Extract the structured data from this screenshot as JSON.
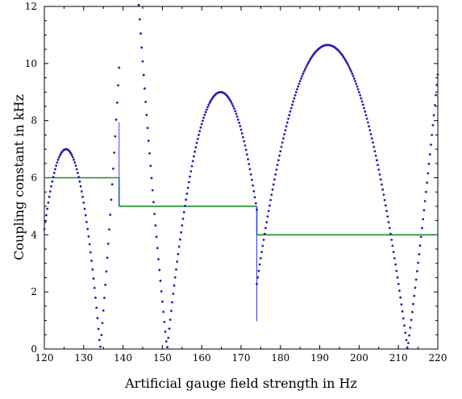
{
  "chart_data": {
    "type": "scatter",
    "title": "",
    "xlabel": "Artificial gauge field strength in Hz",
    "ylabel": "Coupling constant  in  kHz",
    "xlim": [
      120,
      220
    ],
    "ylim": [
      0,
      12
    ],
    "x_ticks": [
      120,
      130,
      140,
      150,
      160,
      170,
      180,
      190,
      200,
      210,
      220
    ],
    "y_ticks": [
      0,
      2,
      4,
      6,
      8,
      10,
      12
    ],
    "x_tick_labels": [
      "120",
      "130",
      "140",
      "150",
      "160",
      "170",
      "180",
      "190",
      "200",
      "210",
      "220"
    ],
    "y_tick_labels": [
      "0",
      "2",
      "4",
      "6",
      "8",
      "10",
      "12"
    ],
    "grid": false,
    "legend": "none",
    "series": [
      {
        "kind": "points",
        "color": "#2a1ab0",
        "segments": [
          {
            "x_start": 120,
            "x_end": 139,
            "vertex_x": 125.5,
            "peak": 7.0,
            "zero_x": 134.2
          },
          {
            "x_start": 139,
            "x_end": 174,
            "vertex_x": 164.8,
            "peak": 9.0,
            "zero_x": 151.2
          },
          {
            "x_start": 174,
            "x_end": 220,
            "vertex_x": 192.0,
            "peak": 10.65,
            "zero_x": 212.3
          }
        ],
        "jumps": [
          {
            "x": 139.0,
            "y_from": 5.0,
            "y_to": 7.95
          },
          {
            "x": 174.0,
            "y_from": 5.0,
            "y_to": 0.97
          }
        ]
      },
      {
        "kind": "step",
        "color": "#1f8a2a",
        "steps": [
          {
            "x_start": 120,
            "x_end": 139,
            "y": 6.0
          },
          {
            "x_start": 139,
            "x_end": 174,
            "y": 5.0
          },
          {
            "x_start": 174,
            "x_end": 220,
            "y": 4.0
          }
        ],
        "transitions": [
          {
            "x": 139,
            "y_from": 6.0,
            "y_to": 5.0
          },
          {
            "x": 174,
            "y_from": 5.0,
            "y_to": 4.0
          }
        ]
      }
    ]
  }
}
